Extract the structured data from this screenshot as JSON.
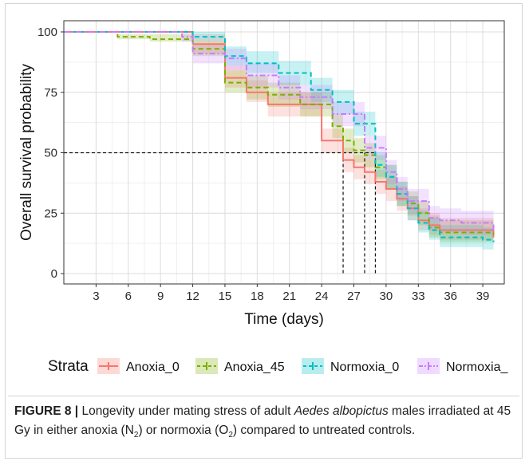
{
  "chart_data": {
    "type": "line",
    "step": true,
    "title": "",
    "xlabel": "Time (days)",
    "ylabel": "Overall survival probability",
    "xlim": [
      0,
      41
    ],
    "ylim": [
      0,
      100
    ],
    "xticks": [
      3,
      6,
      9,
      12,
      15,
      18,
      21,
      24,
      27,
      30,
      33,
      36,
      39
    ],
    "yticks": [
      0,
      25,
      50,
      75,
      100
    ],
    "grid": true,
    "legend": {
      "title": "Strata",
      "position": "bottom"
    },
    "median_reference": {
      "y": 50,
      "x_values": [
        26,
        28,
        29
      ]
    },
    "series": [
      {
        "name": "Anoxia_0",
        "color": "#f8766d",
        "linestyle": "solid",
        "x": [
          0,
          12,
          15,
          17,
          19,
          24,
          26,
          27,
          28,
          29,
          30,
          31,
          32,
          33,
          34,
          35,
          40
        ],
        "y": [
          100,
          95,
          81,
          75,
          70,
          55,
          47,
          44,
          42,
          38,
          35,
          31,
          27,
          22,
          20,
          18,
          15
        ],
        "ci_lower": [
          100,
          91,
          77,
          71,
          65,
          50,
          42,
          39,
          37,
          33,
          30,
          26,
          22,
          18,
          16,
          14,
          11
        ],
        "ci_upper": [
          100,
          99,
          86,
          80,
          75,
          60,
          52,
          49,
          47,
          43,
          40,
          36,
          32,
          27,
          25,
          23,
          20
        ]
      },
      {
        "name": "Anoxia_45",
        "color": "#7cae00",
        "linestyle": "dashed",
        "x": [
          0,
          5,
          8,
          12,
          15,
          17,
          19,
          22,
          25,
          26,
          27,
          28,
          29,
          30,
          31,
          32,
          33,
          34,
          35,
          40
        ],
        "y": [
          100,
          98,
          97,
          93,
          79,
          77,
          74,
          70,
          61,
          55,
          51,
          49,
          44,
          40,
          33,
          29,
          25,
          19,
          17,
          16
        ],
        "ci_lower": [
          100,
          97,
          96,
          90,
          75,
          72,
          69,
          65,
          56,
          50,
          46,
          44,
          39,
          35,
          28,
          24,
          20,
          15,
          13,
          12
        ],
        "ci_upper": [
          100,
          99,
          99,
          96,
          84,
          82,
          79,
          75,
          66,
          60,
          56,
          54,
          49,
          45,
          38,
          34,
          30,
          24,
          22,
          20
        ]
      },
      {
        "name": "Normoxia_0",
        "color": "#00bfc4",
        "linestyle": "dashed",
        "x": [
          0,
          12,
          15,
          17,
          20,
          23,
          25,
          27,
          29,
          30,
          31,
          32,
          33,
          34,
          35,
          39,
          40
        ],
        "y": [
          100,
          98,
          90,
          87,
          83,
          76,
          71,
          62,
          45,
          40,
          33,
          27,
          21,
          18,
          15,
          14,
          13
        ],
        "ci_lower": [
          100,
          96,
          86,
          83,
          78,
          71,
          66,
          57,
          40,
          35,
          28,
          22,
          17,
          14,
          11,
          10,
          9
        ],
        "ci_upper": [
          100,
          100,
          94,
          92,
          88,
          81,
          76,
          67,
          50,
          45,
          38,
          32,
          26,
          23,
          20,
          19,
          18
        ]
      },
      {
        "name": "Normoxia_",
        "color": "#c77cff",
        "linestyle": "dashdot",
        "x": [
          0,
          11,
          12,
          15,
          17,
          20,
          22,
          25,
          28,
          30,
          31,
          32,
          34,
          35,
          37,
          40
        ],
        "y": [
          100,
          98,
          91,
          89,
          82,
          77,
          73,
          66,
          52,
          42,
          35,
          30,
          23,
          22,
          21,
          17
        ],
        "ci_lower": [
          100,
          96,
          87,
          84,
          77,
          72,
          68,
          61,
          47,
          37,
          30,
          25,
          18,
          17,
          16,
          12
        ],
        "ci_upper": [
          100,
          100,
          95,
          93,
          87,
          82,
          78,
          71,
          57,
          47,
          40,
          35,
          28,
          27,
          26,
          22
        ]
      }
    ]
  },
  "caption": {
    "label": "FIGURE 8 |",
    "text_before_species": " Longevity under mating stress of adult ",
    "species": "Aedes albopictus",
    "text_after_species": " males irradiated at 45 Gy in either anoxia (N",
    "sub1": "2",
    "text_mid": ") or normoxia (O",
    "sub2": "2",
    "text_end": ") compared to untreated controls."
  }
}
